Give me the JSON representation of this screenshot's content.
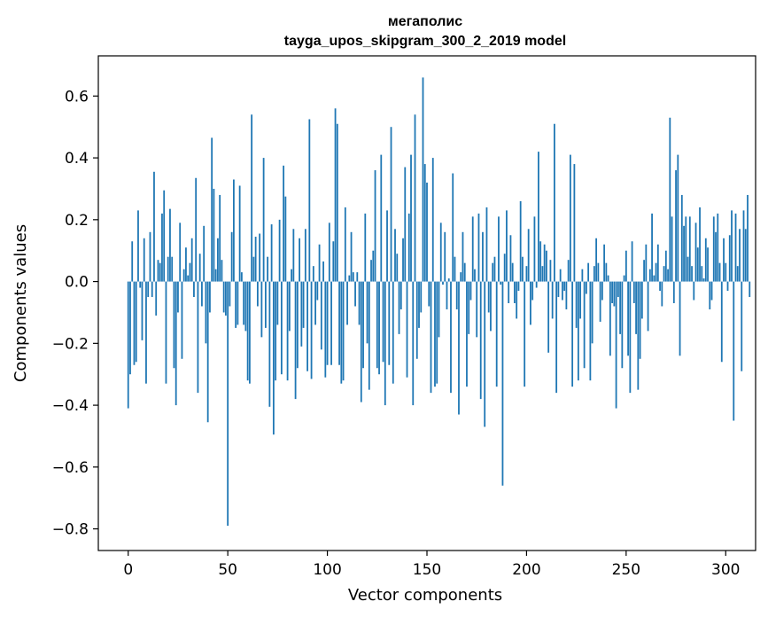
{
  "chart_data": {
    "type": "bar",
    "title_line1": "мегаполис",
    "title_line2": "tayga_upos_skipgram_300_2_2019 model",
    "xlabel": "Vector components",
    "ylabel": "Components values",
    "xlim": [
      -15,
      315
    ],
    "ylim": [
      -0.87,
      0.73
    ],
    "xticks": [
      0,
      50,
      100,
      150,
      200,
      250,
      300
    ],
    "xtick_labels": [
      "0",
      "50",
      "100",
      "150",
      "200",
      "250",
      "300"
    ],
    "yticks": [
      -0.8,
      -0.6,
      -0.4,
      -0.2,
      0.0,
      0.2,
      0.4,
      0.6
    ],
    "ytick_labels": [
      "−0.8",
      "−0.6",
      "−0.4",
      "−0.2",
      "0.0",
      "0.2",
      "0.4",
      "0.6"
    ],
    "bar_color": "#1f77b4",
    "series": [
      {
        "name": "мегаполис",
        "values": [
          -0.41,
          -0.3,
          0.13,
          -0.27,
          -0.26,
          0.23,
          -0.02,
          -0.19,
          0.14,
          -0.33,
          -0.05,
          0.16,
          -0.05,
          0.355,
          -0.11,
          0.07,
          0.06,
          0.22,
          0.295,
          -0.33,
          0.08,
          0.235,
          0.08,
          -0.28,
          -0.4,
          -0.1,
          0.19,
          -0.25,
          0.04,
          0.11,
          0.02,
          0.06,
          0.14,
          -0.05,
          0.335,
          -0.36,
          0.09,
          -0.08,
          0.18,
          -0.2,
          -0.455,
          -0.1,
          0.465,
          0.3,
          0.04,
          0.14,
          0.28,
          0.07,
          -0.1,
          -0.11,
          -0.79,
          -0.08,
          0.16,
          0.33,
          -0.15,
          -0.14,
          0.31,
          0.03,
          -0.14,
          -0.16,
          -0.32,
          -0.33,
          0.54,
          0.08,
          0.145,
          -0.08,
          0.155,
          -0.18,
          0.4,
          -0.15,
          0.08,
          -0.405,
          0.185,
          -0.495,
          -0.32,
          -0.14,
          0.2,
          -0.3,
          0.375,
          0.275,
          -0.32,
          -0.16,
          0.04,
          0.17,
          -0.38,
          -0.28,
          0.14,
          -0.21,
          -0.15,
          0.17,
          -0.29,
          0.525,
          -0.315,
          0.05,
          -0.14,
          -0.06,
          0.12,
          -0.22,
          0.065,
          -0.31,
          -0.27,
          0.19,
          -0.27,
          0.13,
          0.56,
          0.51,
          -0.27,
          -0.33,
          -0.32,
          0.24,
          -0.14,
          0.02,
          0.16,
          0.03,
          -0.08,
          0.03,
          -0.14,
          -0.39,
          -0.28,
          0.22,
          -0.2,
          -0.35,
          0.07,
          0.1,
          0.36,
          -0.28,
          -0.3,
          0.41,
          -0.26,
          -0.4,
          0.23,
          -0.27,
          0.5,
          -0.33,
          0.17,
          0.09,
          -0.17,
          -0.09,
          0.14,
          0.37,
          -0.31,
          0.22,
          0.41,
          -0.4,
          0.54,
          -0.25,
          -0.15,
          -0.1,
          0.66,
          0.38,
          0.32,
          -0.08,
          -0.36,
          0.4,
          -0.34,
          -0.33,
          -0.18,
          0.19,
          -0.01,
          0.16,
          -0.09,
          0.01,
          -0.36,
          0.35,
          0.08,
          -0.09,
          -0.43,
          0.03,
          0.16,
          0.06,
          -0.34,
          -0.17,
          -0.06,
          0.21,
          0.04,
          -0.18,
          0.22,
          -0.38,
          0.16,
          -0.47,
          0.24,
          -0.1,
          -0.16,
          0.06,
          0.08,
          -0.34,
          0.21,
          -0.01,
          -0.66,
          0.09,
          0.23,
          -0.07,
          0.15,
          0.06,
          -0.07,
          -0.12,
          -0.03,
          0.26,
          0.08,
          -0.34,
          0.05,
          0.17,
          -0.14,
          -0.06,
          0.21,
          -0.02,
          0.42,
          0.13,
          0.05,
          0.12,
          0.1,
          -0.23,
          0.07,
          -0.12,
          0.51,
          -0.36,
          -0.05,
          0.04,
          -0.06,
          -0.03,
          -0.09,
          0.07,
          0.41,
          -0.34,
          0.38,
          -0.15,
          -0.32,
          -0.12,
          0.04,
          -0.28,
          -0.04,
          0.06,
          -0.32,
          -0.2,
          0.05,
          0.14,
          0.06,
          -0.13,
          -0.06,
          0.12,
          0.06,
          0.02,
          -0.24,
          -0.07,
          -0.08,
          -0.41,
          -0.05,
          -0.17,
          -0.28,
          0.02,
          0.1,
          -0.24,
          -0.36,
          0.13,
          -0.07,
          -0.17,
          -0.35,
          -0.25,
          -0.12,
          0.07,
          0.12,
          -0.16,
          0.04,
          0.22,
          0.02,
          0.06,
          0.12,
          -0.03,
          -0.08,
          0.05,
          0.1,
          0.04,
          0.53,
          0.21,
          -0.07,
          0.36,
          0.41,
          -0.24,
          0.28,
          0.18,
          0.21,
          0.08,
          0.21,
          0.05,
          -0.06,
          0.19,
          0.11,
          0.24,
          0.05,
          0.01,
          0.14,
          0.11,
          -0.09,
          -0.06,
          0.21,
          0.16,
          0.22,
          0.06,
          -0.26,
          0.14,
          0.06,
          -0.03,
          0.15,
          0.23,
          -0.45,
          0.22,
          0.05,
          0.17,
          -0.29,
          0.23,
          0.17,
          0.28,
          -0.05
        ]
      }
    ]
  }
}
